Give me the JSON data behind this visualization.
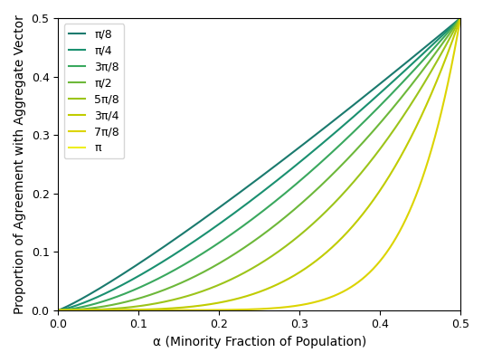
{
  "labels": [
    "π/8",
    "π/4",
    "3π/8",
    "π/2",
    "5π/8",
    "3π/4",
    "7π/8",
    "π"
  ],
  "angle_values": [
    0.392699,
    0.785398,
    1.178097,
    1.570796,
    1.963495,
    2.356194,
    2.748894,
    3.141593
  ],
  "colors": [
    "#1a7a6e",
    "#1a9070",
    "#3aa85e",
    "#6db83a",
    "#9cc41a",
    "#c0cc00",
    "#dcd400",
    "#eeee20"
  ],
  "xlabel": "α (Minority Fraction of Population)",
  "ylabel": "Proportion of Agreement with Aggregate Vector",
  "xlim": [
    0.0,
    0.5
  ],
  "ylim": [
    0.0,
    0.5
  ],
  "n_points": 1000
}
